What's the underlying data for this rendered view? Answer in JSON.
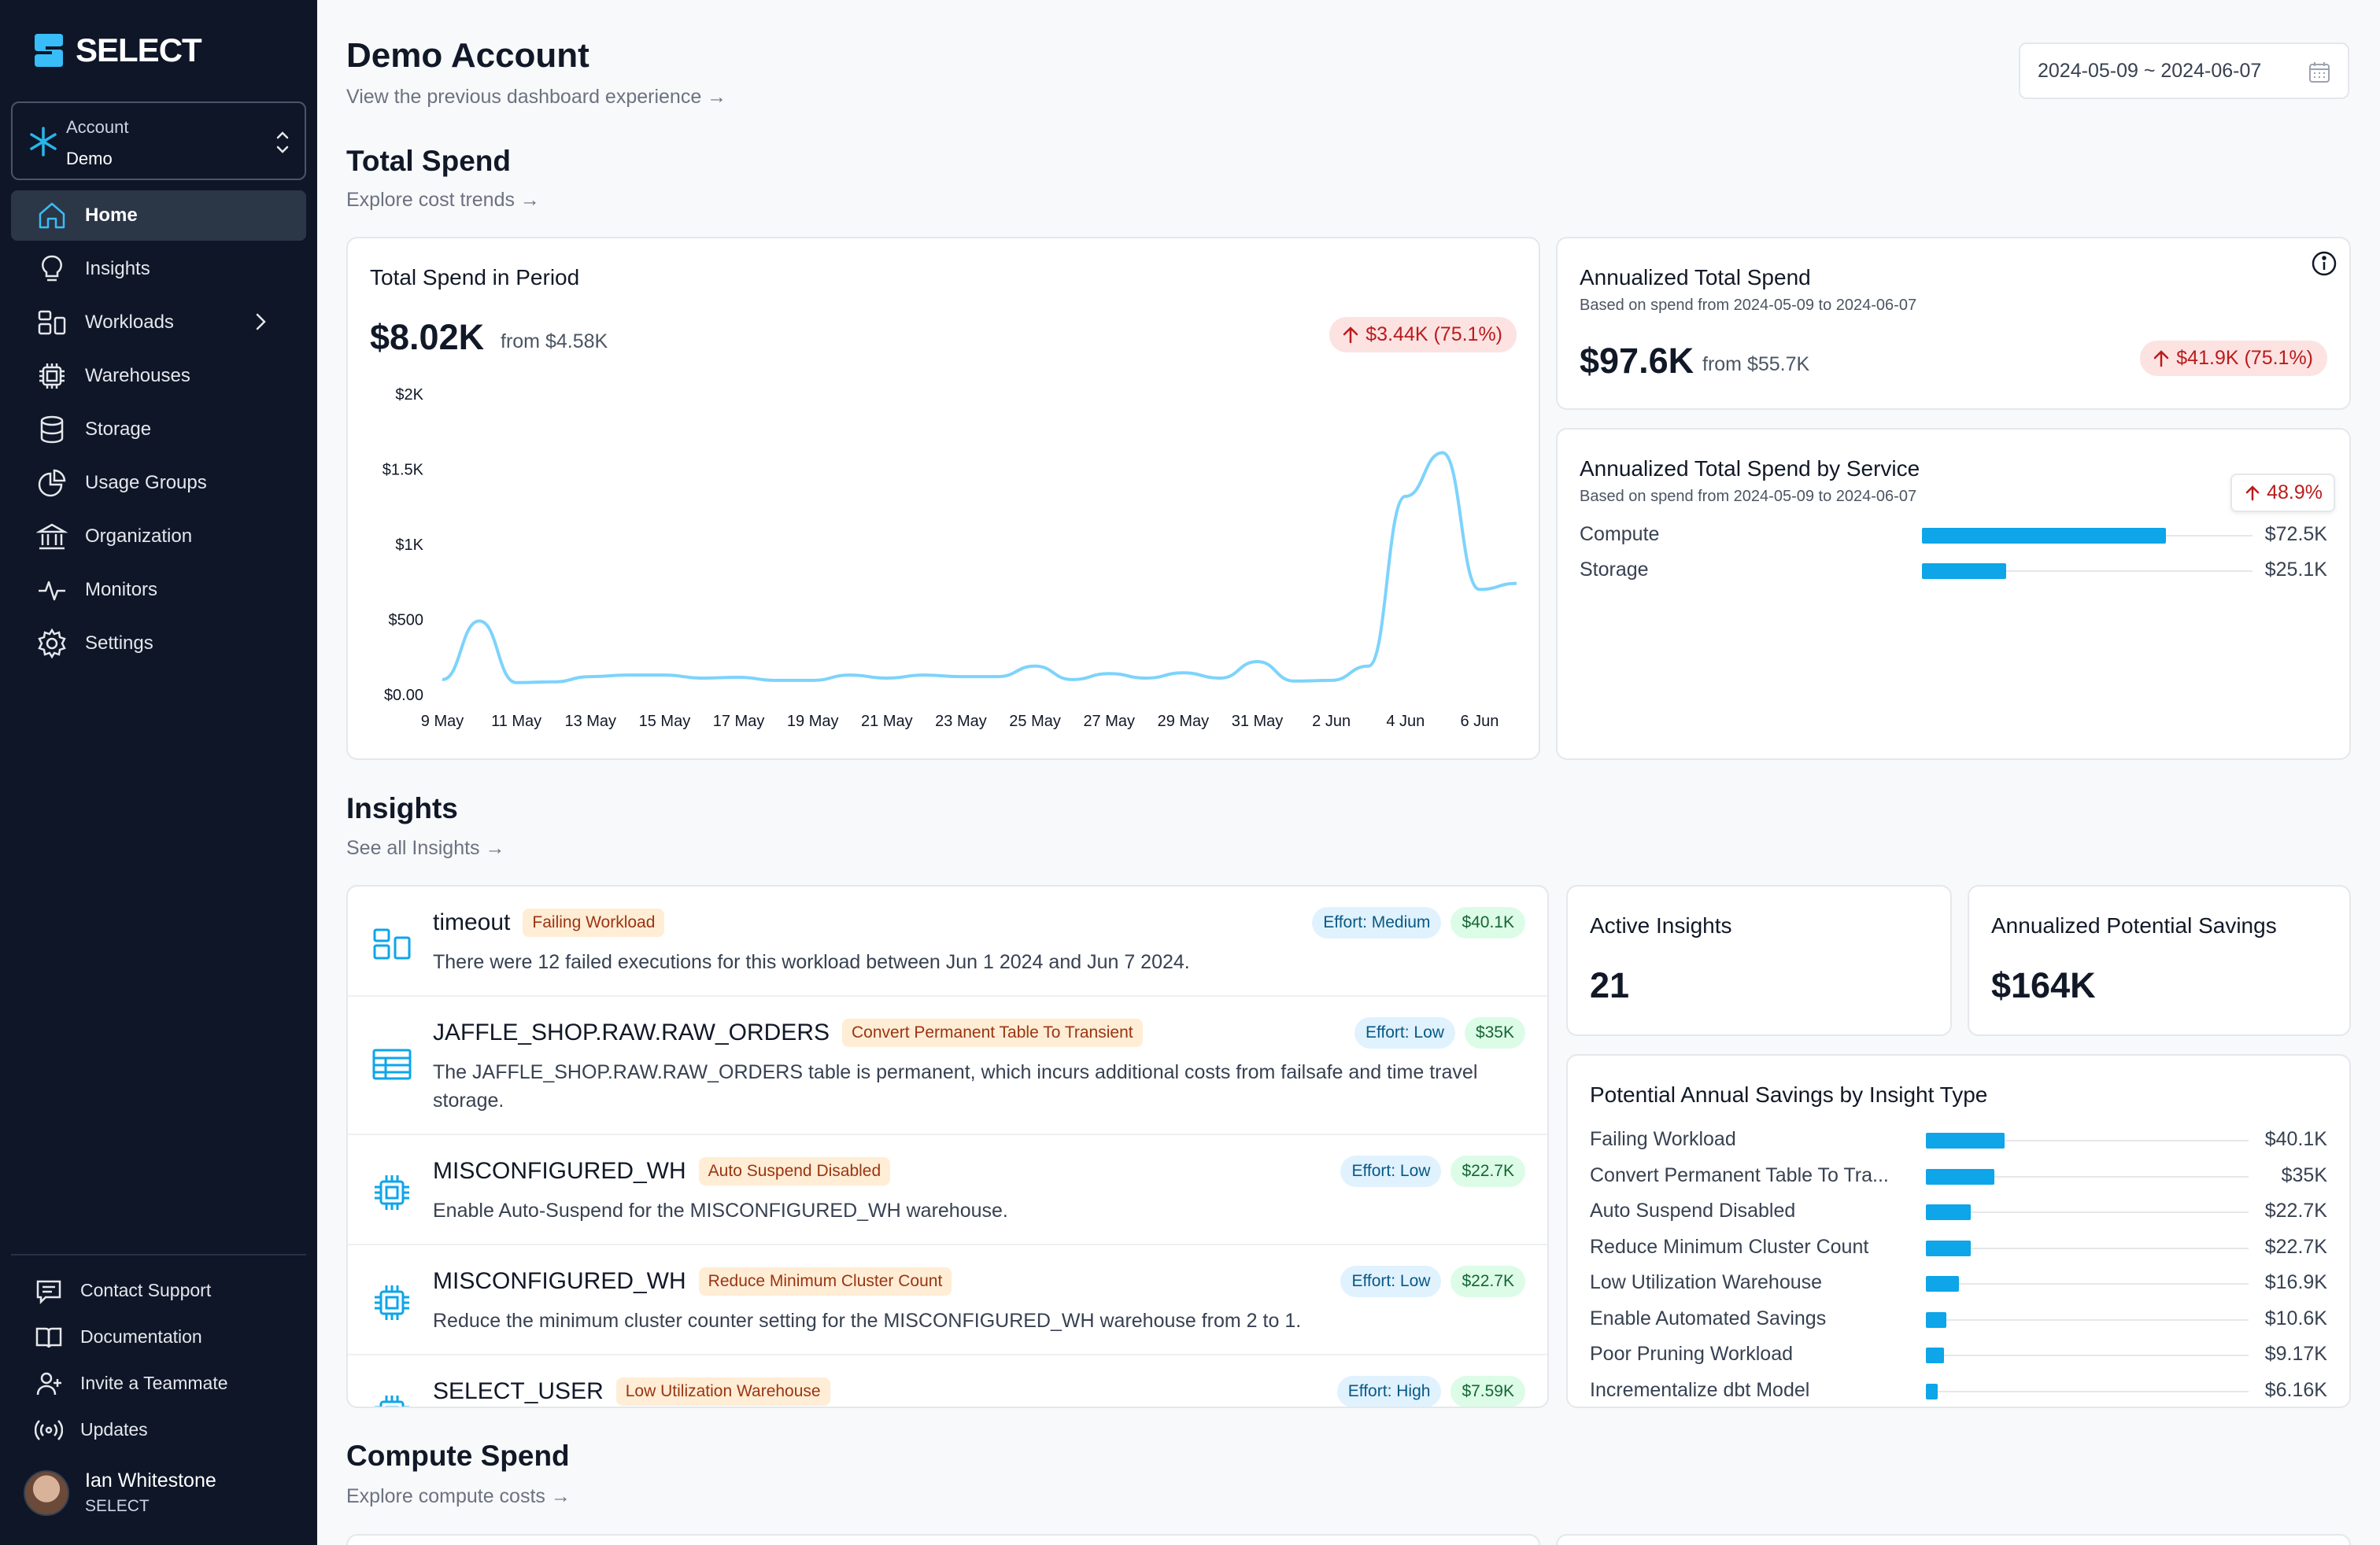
{
  "brand": {
    "name": "SELECT"
  },
  "account": {
    "label": "Account",
    "value": "Demo"
  },
  "nav": [
    {
      "label": "Home",
      "icon": "home-icon",
      "active": true
    },
    {
      "label": "Insights",
      "icon": "lightbulb-icon"
    },
    {
      "label": "Workloads",
      "icon": "workloads-icon",
      "expandable": true
    },
    {
      "label": "Warehouses",
      "icon": "chip-icon"
    },
    {
      "label": "Storage",
      "icon": "database-icon"
    },
    {
      "label": "Usage Groups",
      "icon": "pie-icon"
    },
    {
      "label": "Organization",
      "icon": "bank-icon"
    },
    {
      "label": "Monitors",
      "icon": "pulse-icon"
    },
    {
      "label": "Settings",
      "icon": "gear-icon"
    }
  ],
  "footer": [
    {
      "label": "Contact Support",
      "icon": "chat-icon"
    },
    {
      "label": "Documentation",
      "icon": "book-icon"
    },
    {
      "label": "Invite a Teammate",
      "icon": "user-plus-icon"
    },
    {
      "label": "Updates",
      "icon": "broadcast-icon"
    }
  ],
  "user": {
    "name": "Ian Whitestone",
    "org": "SELECT"
  },
  "page": {
    "title": "Demo Account",
    "prev_link": "View the previous dashboard experience →",
    "date_range": "2024-05-09 ~ 2024-06-07"
  },
  "total_spend": {
    "heading": "Total Spend",
    "link": "Explore cost trends →",
    "period_card": {
      "title": "Total Spend in Period",
      "value": "$8.02K",
      "from": "from $4.58K",
      "change": "$3.44K (75.1%)"
    },
    "annualized_card": {
      "title": "Annualized Total Spend",
      "sub": "Based on spend from 2024-05-09 to 2024-06-07",
      "value": "$97.6K",
      "from": "from $55.7K",
      "change": "$41.9K (75.1%)"
    },
    "by_service": {
      "title": "Annualized Total Spend by Service",
      "sub": "Based on spend from 2024-05-09 to 2024-06-07",
      "tooltip": "48.9%",
      "rows": [
        {
          "label": "Compute",
          "value": "$72.5K",
          "amount": 72.5
        },
        {
          "label": "Storage",
          "value": "$25.1K",
          "amount": 25.1
        }
      ]
    }
  },
  "chart_data": {
    "type": "line",
    "title": "Total Spend in Period",
    "xlabel": "",
    "ylabel": "",
    "y_ticks": [
      "$0.00",
      "$500",
      "$1K",
      "$1.5K",
      "$2K"
    ],
    "ylim": [
      0,
      2000
    ],
    "x_ticks": [
      "9 May",
      "11 May",
      "13 May",
      "15 May",
      "17 May",
      "19 May",
      "21 May",
      "23 May",
      "25 May",
      "27 May",
      "29 May",
      "31 May",
      "2 Jun",
      "4 Jun",
      "6 Jun"
    ],
    "x": [
      "9 May",
      "10 May",
      "11 May",
      "12 May",
      "13 May",
      "14 May",
      "15 May",
      "16 May",
      "17 May",
      "18 May",
      "19 May",
      "20 May",
      "21 May",
      "22 May",
      "23 May",
      "24 May",
      "25 May",
      "26 May",
      "27 May",
      "28 May",
      "29 May",
      "30 May",
      "31 May",
      "1 Jun",
      "2 Jun",
      "3 Jun",
      "4 Jun",
      "5 Jun",
      "6 Jun",
      "7 Jun"
    ],
    "series": [
      {
        "color": "#7dd3fc",
        "values": [
          100,
          490,
          80,
          85,
          120,
          130,
          130,
          110,
          115,
          95,
          95,
          130,
          110,
          130,
          120,
          120,
          190,
          100,
          140,
          110,
          145,
          110,
          220,
          90,
          95,
          190,
          1320,
          1610,
          700,
          740
        ]
      }
    ],
    "grid": false,
    "legend": "none"
  },
  "insights": {
    "heading": "Insights",
    "link": "See all Insights →",
    "items": [
      {
        "icon": "workloads-icon",
        "title": "timeout",
        "tag": "Failing Workload",
        "effort": "Effort: Medium",
        "savings": "$40.1K",
        "desc": "There were 12 failed executions for this workload between Jun 1 2024 and Jun 7 2024."
      },
      {
        "icon": "table-icon",
        "title": "JAFFLE_SHOP.RAW.RAW_ORDERS",
        "tag": "Convert Permanent Table To Transient",
        "effort": "Effort: Low",
        "savings": "$35K",
        "desc": "The JAFFLE_SHOP.RAW.RAW_ORDERS table is permanent, which incurs additional costs from failsafe and time travel storage."
      },
      {
        "icon": "chip-icon",
        "title": "MISCONFIGURED_WH",
        "tag": "Auto Suspend Disabled",
        "effort": "Effort: Low",
        "savings": "$22.7K",
        "desc": "Enable Auto-Suspend for the MISCONFIGURED_WH warehouse."
      },
      {
        "icon": "chip-icon",
        "title": "MISCONFIGURED_WH",
        "tag": "Reduce Minimum Cluster Count",
        "effort": "Effort: Low",
        "savings": "$22.7K",
        "desc": "Reduce the minimum cluster counter setting for the MISCONFIGURED_WH warehouse from 2 to 1."
      },
      {
        "icon": "chip-icon",
        "title": "SELECT_USER",
        "tag": "Low Utilization Warehouse",
        "effort": "Effort: High",
        "savings": "$7.59K",
        "desc": ""
      }
    ],
    "active": {
      "title": "Active Insights",
      "value": "21"
    },
    "potential": {
      "title": "Annualized Potential Savings",
      "value": "$164K"
    },
    "by_type": {
      "title": "Potential Annual Savings by Insight Type",
      "rows": [
        {
          "label": "Failing Workload",
          "value": "$40.1K",
          "amount": 40.1
        },
        {
          "label": "Convert Permanent Table To Tra...",
          "value": "$35K",
          "amount": 35
        },
        {
          "label": "Auto Suspend Disabled",
          "value": "$22.7K",
          "amount": 22.7
        },
        {
          "label": "Reduce Minimum Cluster Count",
          "value": "$22.7K",
          "amount": 22.7
        },
        {
          "label": "Low Utilization Warehouse",
          "value": "$16.9K",
          "amount": 16.9
        },
        {
          "label": "Enable Automated Savings",
          "value": "$10.6K",
          "amount": 10.6
        },
        {
          "label": "Poor Pruning Workload",
          "value": "$9.17K",
          "amount": 9.17
        },
        {
          "label": "Incrementalize dbt Model",
          "value": "$6.16K",
          "amount": 6.16
        }
      ]
    }
  },
  "compute_spend": {
    "heading": "Compute Spend",
    "link": "Explore compute costs →"
  },
  "colors": {
    "sidebar": "#0e1628",
    "accent": "#0ea5e9",
    "line": "#7dd3fc"
  }
}
